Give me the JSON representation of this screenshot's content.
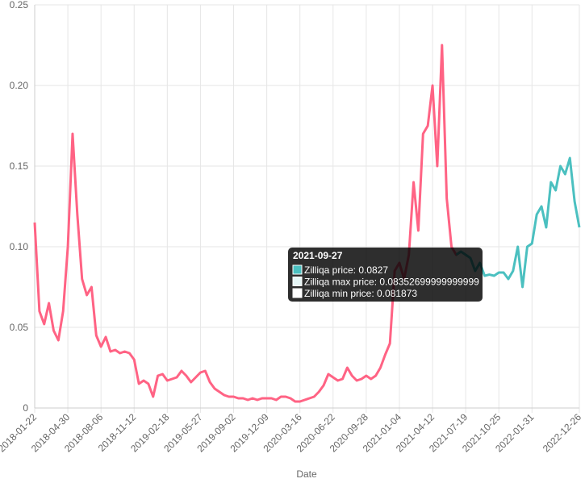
{
  "chart_data": {
    "type": "line",
    "x_label": "Date",
    "categories": [
      "2018-01-22",
      null,
      null,
      null,
      null,
      null,
      null,
      "2018-04-30",
      null,
      null,
      null,
      null,
      null,
      null,
      "2018-08-06",
      null,
      null,
      null,
      null,
      null,
      null,
      "2018-11-12",
      null,
      null,
      null,
      null,
      null,
      null,
      "2019-02-18",
      null,
      null,
      null,
      null,
      null,
      null,
      "2019-05-27",
      null,
      null,
      null,
      null,
      null,
      null,
      "2019-09-02",
      null,
      null,
      null,
      null,
      null,
      null,
      "2019-12-09",
      null,
      null,
      null,
      null,
      null,
      null,
      "2020-03-16",
      null,
      null,
      null,
      null,
      null,
      null,
      "2020-06-22",
      null,
      null,
      null,
      null,
      null,
      null,
      "2020-09-28",
      null,
      null,
      null,
      null,
      null,
      null,
      "2021-01-04",
      null,
      null,
      null,
      null,
      null,
      null,
      "2021-04-12",
      null,
      null,
      null,
      null,
      null,
      null,
      "2021-07-19",
      null,
      null,
      null,
      null,
      null,
      null,
      "2021-10-25",
      null,
      null,
      null,
      null,
      null,
      null,
      "2022-01-31",
      null,
      null,
      null,
      null,
      null,
      null,
      null,
      null,
      null,
      "2022-12-26"
    ],
    "series": [
      {
        "color": "#ff6384",
        "values": [
          0.115,
          0.06,
          0.052,
          0.065,
          0.048,
          0.042,
          0.06,
          0.1,
          0.17,
          0.12,
          0.08,
          0.07,
          0.075,
          0.045,
          0.038,
          0.044,
          0.035,
          0.036,
          0.034,
          0.035,
          0.034,
          0.03,
          0.015,
          0.017,
          0.015,
          0.007,
          0.02,
          0.021,
          0.017,
          0.018,
          0.019,
          0.023,
          0.02,
          0.016,
          0.019,
          0.022,
          0.023,
          0.016,
          0.012,
          0.01,
          0.008,
          0.007,
          0.007,
          0.006,
          0.006,
          0.005,
          0.006,
          0.005,
          0.006,
          0.006,
          0.006,
          0.005,
          0.007,
          0.007,
          0.006,
          0.004,
          0.004,
          0.005,
          0.006,
          0.007,
          0.01,
          0.014,
          0.021,
          0.019,
          0.017,
          0.018,
          0.025,
          0.02,
          0.017,
          0.018,
          0.02,
          0.018,
          0.02,
          0.025,
          0.033,
          0.04,
          0.085,
          0.09,
          0.08,
          0.095,
          0.14,
          0.11,
          0.17,
          0.175,
          0.2,
          0.15,
          0.225,
          0.13,
          0.1,
          0.095,
          0.097,
          null,
          null,
          null,
          null,
          null,
          null,
          null,
          null,
          null,
          null,
          null,
          null,
          null,
          null,
          null,
          null,
          null,
          null,
          null,
          null,
          null,
          null,
          null,
          null,
          null
        ]
      },
      {
        "color": "#4bc0c0",
        "values": [
          null,
          null,
          null,
          null,
          null,
          null,
          null,
          null,
          null,
          null,
          null,
          null,
          null,
          null,
          null,
          null,
          null,
          null,
          null,
          null,
          null,
          null,
          null,
          null,
          null,
          null,
          null,
          null,
          null,
          null,
          null,
          null,
          null,
          null,
          null,
          null,
          null,
          null,
          null,
          null,
          null,
          null,
          null,
          null,
          null,
          null,
          null,
          null,
          null,
          null,
          null,
          null,
          null,
          null,
          null,
          null,
          null,
          null,
          null,
          null,
          null,
          null,
          null,
          null,
          null,
          null,
          null,
          null,
          null,
          null,
          null,
          null,
          null,
          null,
          null,
          null,
          null,
          null,
          null,
          null,
          null,
          null,
          null,
          null,
          null,
          null,
          null,
          null,
          null,
          0.095,
          0.097,
          0.095,
          0.093,
          0.085,
          0.09,
          0.082,
          0.0827,
          0.082,
          0.084,
          0.084,
          0.08,
          0.085,
          0.1,
          0.075,
          0.1,
          0.102,
          0.12,
          0.125,
          0.112,
          0.14,
          0.135,
          0.15,
          0.145,
          0.155,
          0.128,
          0.112
        ]
      }
    ],
    "ylim": [
      0,
      0.25
    ],
    "yticks": [
      0,
      0.05,
      {
        "value": 0.1,
        "label": "0.10"
      },
      0.15,
      {
        "value": 0.2,
        "label": "0.20"
      },
      0.25
    ],
    "grid": true,
    "tooltip": {
      "title": "2021-09-27",
      "rows": [
        {
          "label": "Zilliqa price: 0.0827",
          "color": "#4bc0c0"
        },
        {
          "label": "Zilliqa max price: 0.08352699999999999",
          "color": "#e6f6f6"
        },
        {
          "label": "Zilliqa min price: 0.081873",
          "color": "#ffffff"
        }
      ]
    }
  }
}
